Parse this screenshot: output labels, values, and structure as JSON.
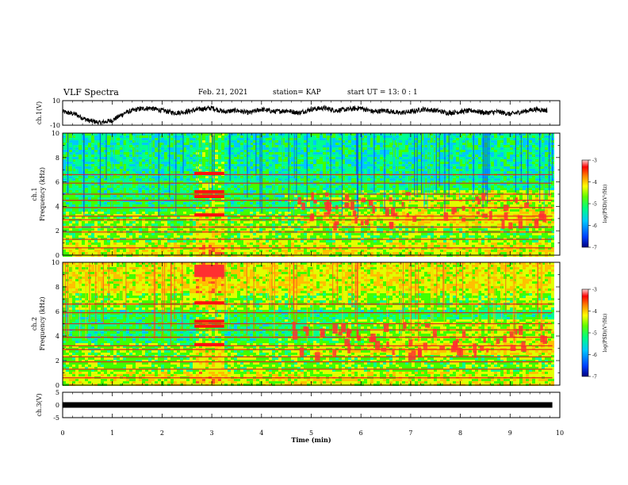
{
  "header": {
    "title": "VLF Spectra",
    "date": "Feb. 21, 2021",
    "station": "station= KAP",
    "start": "start  UT  =   13: 0  : 1"
  },
  "chart_data": [
    {
      "type": "line",
      "panel": "ch1-voltage",
      "ylabel": "ch.1(V)",
      "ylim": [
        -10,
        10
      ],
      "yticks": [
        "10",
        "-10"
      ],
      "xlim": [
        0,
        10
      ],
      "x": [
        0,
        0.25,
        0.5,
        0.75,
        1.0,
        1.25,
        1.5,
        1.75,
        2.0,
        2.25,
        2.5,
        2.75,
        3.0,
        3.25,
        3.5,
        3.75,
        4.0,
        4.25,
        4.5,
        4.75,
        5.0,
        5.25,
        5.5,
        5.75,
        6.0,
        6.25,
        6.5,
        6.75,
        7.0,
        7.25,
        7.5,
        7.75,
        8.0,
        8.25,
        8.5,
        8.75,
        9.0,
        9.25,
        9.5,
        9.75
      ],
      "y": [
        1,
        -1,
        -6,
        -8,
        -6,
        0,
        3,
        4,
        2,
        0,
        1,
        3,
        4,
        1,
        2,
        0,
        3,
        1,
        2,
        0,
        3,
        4,
        2,
        3,
        4,
        1,
        2,
        0,
        1,
        3,
        2,
        0,
        1,
        2,
        0,
        1,
        -1,
        1,
        3,
        2
      ]
    },
    {
      "type": "heatmap",
      "panel": "ch1-spectrogram",
      "ylabel": "ch.1\nFrequency (kHz)",
      "ylim": [
        0,
        10
      ],
      "yticks": [
        "0",
        "2",
        "4",
        "6",
        "8",
        "10"
      ],
      "xlim": [
        0,
        10
      ],
      "colorbar": {
        "label": "log(PSD)(V²/Hz)",
        "range": [
          -7,
          -3
        ],
        "ticks": [
          "-3",
          "-4",
          "-5",
          "-6",
          "-7"
        ]
      },
      "lines_khz": [
        0.6,
        1.3,
        1.9,
        2.3,
        2.9,
        3.2,
        3.9,
        4.5,
        5.0,
        5.9,
        6.6
      ],
      "burst": {
        "t": [
          2.65,
          3.25
        ],
        "f": [
          0,
          10
        ]
      }
    },
    {
      "type": "heatmap",
      "panel": "ch2-spectrogram",
      "ylabel": "ch.2\nFrequency (kHz)",
      "ylim": [
        0,
        10
      ],
      "yticks": [
        "0",
        "2",
        "4",
        "6",
        "8",
        "10"
      ],
      "xlim": [
        0,
        10
      ],
      "colorbar": {
        "label": "log(PSD)(V²/Hz)",
        "range": [
          -7,
          -3
        ],
        "ticks": [
          "-3",
          "-4",
          "-5",
          "-6",
          "-7"
        ]
      },
      "lines_khz": [
        0.6,
        1.3,
        1.9,
        2.3,
        2.9,
        3.2,
        3.9,
        4.5,
        5.0,
        5.9,
        6.6
      ],
      "burst": {
        "t": [
          2.65,
          3.25
        ],
        "f": [
          0,
          10
        ]
      }
    },
    {
      "type": "line",
      "panel": "ch3-voltage",
      "ylabel": "ch.3(V)",
      "ylim": [
        -5,
        5
      ],
      "yticks": [
        "5",
        "0",
        "-5"
      ],
      "xlim": [
        0,
        10
      ],
      "x": [
        0,
        9.85
      ],
      "y": [
        0,
        0
      ]
    }
  ],
  "xaxis": {
    "label": "Time  (min)",
    "ticks": [
      "0",
      "1",
      "2",
      "3",
      "4",
      "5",
      "6",
      "7",
      "8",
      "9",
      "10"
    ]
  },
  "colors": {
    "colormap": [
      "#0000a0",
      "#0040ff",
      "#00c8ff",
      "#00ff90",
      "#40ff00",
      "#e0ff00",
      "#ffc000",
      "#ff5020",
      "#ff0000"
    ],
    "trace": "#000000"
  }
}
